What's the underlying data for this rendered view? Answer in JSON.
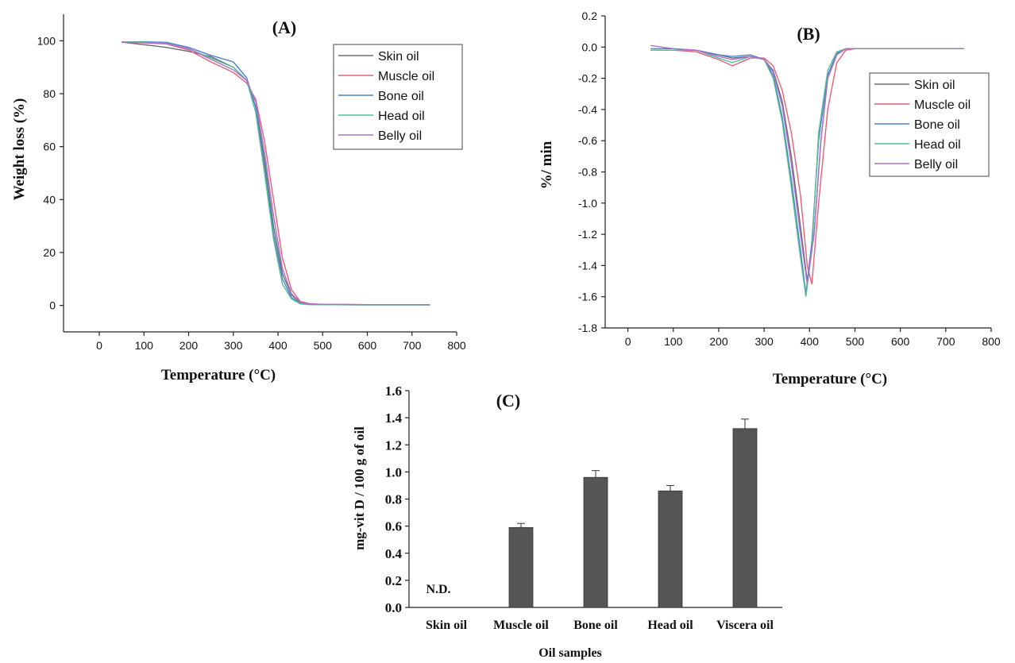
{
  "chart_data": [
    {
      "panel": "(A)",
      "type": "line",
      "title": "(A)",
      "xlabel": "Temperature (°C)",
      "ylabel": "Weight loss (%)",
      "xlim": [
        -80,
        800
      ],
      "ylim": [
        -10,
        110
      ],
      "xticks": [
        0,
        100,
        200,
        300,
        400,
        500,
        600,
        700,
        800
      ],
      "yticks": [
        0,
        20,
        40,
        60,
        80,
        100
      ],
      "legend_position": "top-right",
      "series": [
        {
          "name": "Skin oil",
          "color": "#6b6b6b",
          "x": [
            50,
            100,
            150,
            200,
            250,
            300,
            330,
            350,
            370,
            390,
            410,
            430,
            450,
            470,
            500,
            600,
            740
          ],
          "y": [
            99.5,
            98.5,
            97.5,
            96,
            94,
            90,
            85,
            75,
            55,
            30,
            12,
            4,
            1,
            0.5,
            0.4,
            0.3,
            0.3
          ]
        },
        {
          "name": "Muscle oil",
          "color": "#e0607a",
          "x": [
            50,
            100,
            150,
            200,
            250,
            300,
            330,
            350,
            370,
            390,
            410,
            430,
            450,
            470,
            500,
            600,
            740
          ],
          "y": [
            99.5,
            99.2,
            98.8,
            96.5,
            92,
            88,
            84,
            78,
            62,
            40,
            18,
            6,
            1.5,
            0.7,
            0.4,
            0.3,
            0.3
          ]
        },
        {
          "name": "Bone oil",
          "color": "#4f7fd0",
          "x": [
            50,
            100,
            150,
            200,
            250,
            300,
            330,
            350,
            370,
            390,
            410,
            430,
            450,
            470,
            500,
            600,
            740
          ],
          "y": [
            99.6,
            99.6,
            99.4,
            97.5,
            94.5,
            92,
            86,
            75,
            52,
            27,
            10,
            3,
            0.8,
            0.4,
            0.3,
            0.2,
            0.2
          ]
        },
        {
          "name": "Head oil",
          "color": "#4fbf98",
          "x": [
            50,
            100,
            150,
            200,
            250,
            300,
            330,
            350,
            370,
            390,
            410,
            430,
            450,
            470,
            500,
            600,
            740
          ],
          "y": [
            99.6,
            99.5,
            99,
            97,
            93.5,
            90,
            85,
            73,
            50,
            25,
            8,
            2.5,
            0.6,
            0.3,
            0.3,
            0.2,
            0.2
          ]
        },
        {
          "name": "Belly oil",
          "color": "#b070c8",
          "x": [
            50,
            100,
            150,
            200,
            250,
            300,
            330,
            350,
            370,
            390,
            410,
            430,
            450,
            470,
            500,
            600,
            740
          ],
          "y": [
            99.5,
            99.3,
            98.9,
            97,
            93,
            89,
            85,
            77,
            58,
            34,
            14,
            4.5,
            1.2,
            0.5,
            0.4,
            0.3,
            0.3
          ]
        }
      ]
    },
    {
      "panel": "(B)",
      "type": "line",
      "title": "(B)",
      "xlabel": "Temperature (°C)",
      "ylabel": "%/ min",
      "xlim": [
        -50,
        800
      ],
      "ylim": [
        -1.8,
        0.2
      ],
      "xticks": [
        0,
        100,
        200,
        300,
        400,
        500,
        600,
        700,
        800
      ],
      "yticks": [
        0.2,
        0.0,
        -0.2,
        -0.4,
        -0.6,
        -0.8,
        -1.0,
        -1.2,
        -1.4,
        -1.6,
        -1.8
      ],
      "legend_position": "right",
      "series": [
        {
          "name": "Skin oil",
          "color": "#6b6b6b",
          "x": [
            50,
            100,
            150,
            200,
            230,
            270,
            300,
            320,
            340,
            360,
            380,
            395,
            410,
            425,
            440,
            460,
            480,
            500,
            600,
            740
          ],
          "y": [
            -0.02,
            -0.02,
            -0.02,
            -0.05,
            -0.07,
            -0.06,
            -0.08,
            -0.15,
            -0.35,
            -0.7,
            -1.15,
            -1.5,
            -1.2,
            -0.6,
            -0.2,
            -0.05,
            -0.01,
            -0.01,
            -0.01,
            -0.01
          ]
        },
        {
          "name": "Muscle oil",
          "color": "#e0607a",
          "x": [
            50,
            100,
            150,
            200,
            230,
            270,
            300,
            320,
            340,
            360,
            380,
            395,
            405,
            420,
            440,
            460,
            480,
            500,
            600,
            740
          ],
          "y": [
            -0.02,
            -0.02,
            -0.03,
            -0.08,
            -0.12,
            -0.07,
            -0.07,
            -0.12,
            -0.28,
            -0.55,
            -0.95,
            -1.4,
            -1.52,
            -1.0,
            -0.4,
            -0.1,
            -0.02,
            -0.01,
            -0.01,
            -0.01
          ]
        },
        {
          "name": "Bone oil",
          "color": "#4f7fd0",
          "x": [
            50,
            100,
            150,
            200,
            230,
            270,
            300,
            320,
            340,
            360,
            380,
            392,
            405,
            420,
            440,
            460,
            480,
            500,
            600,
            740
          ],
          "y": [
            -0.01,
            -0.01,
            -0.02,
            -0.05,
            -0.06,
            -0.05,
            -0.08,
            -0.18,
            -0.45,
            -0.85,
            -1.3,
            -1.58,
            -1.25,
            -0.6,
            -0.18,
            -0.04,
            -0.01,
            -0.01,
            -0.01,
            -0.01
          ]
        },
        {
          "name": "Head oil",
          "color": "#4fbf98",
          "x": [
            50,
            100,
            150,
            200,
            230,
            270,
            300,
            320,
            340,
            360,
            380,
            392,
            405,
            420,
            440,
            460,
            480,
            500,
            600,
            740
          ],
          "y": [
            -0.02,
            -0.02,
            -0.02,
            -0.07,
            -0.1,
            -0.06,
            -0.08,
            -0.2,
            -0.48,
            -0.9,
            -1.35,
            -1.6,
            -1.3,
            -0.55,
            -0.15,
            -0.03,
            -0.01,
            -0.01,
            -0.01,
            -0.01
          ]
        },
        {
          "name": "Belly oil",
          "color": "#b070c8",
          "x": [
            50,
            100,
            150,
            200,
            230,
            270,
            300,
            320,
            340,
            360,
            380,
            395,
            410,
            425,
            440,
            460,
            480,
            500,
            600,
            740
          ],
          "y": [
            0.01,
            -0.01,
            -0.02,
            -0.06,
            -0.08,
            -0.06,
            -0.08,
            -0.16,
            -0.38,
            -0.75,
            -1.2,
            -1.52,
            -1.2,
            -0.6,
            -0.2,
            -0.05,
            -0.01,
            -0.01,
            -0.01,
            -0.01
          ]
        }
      ]
    },
    {
      "panel": "(C)",
      "type": "bar",
      "title": "(C)",
      "xlabel": "Oil samples",
      "ylabel": "mg-vit D / 100 g of oil",
      "ylim": [
        0,
        1.6
      ],
      "yticks": [
        0.0,
        0.2,
        0.4,
        0.6,
        0.8,
        1.0,
        1.2,
        1.4,
        1.6
      ],
      "categories": [
        "Skin oil",
        "Muscle oil",
        "Bone oil",
        "Head oil",
        "Viscera oil"
      ],
      "values": [
        0,
        0.59,
        0.96,
        0.86,
        1.32
      ],
      "errors": [
        0,
        0.03,
        0.05,
        0.04,
        0.07
      ],
      "annotations": [
        "N.D."
      ],
      "bar_color": "#555555"
    }
  ]
}
